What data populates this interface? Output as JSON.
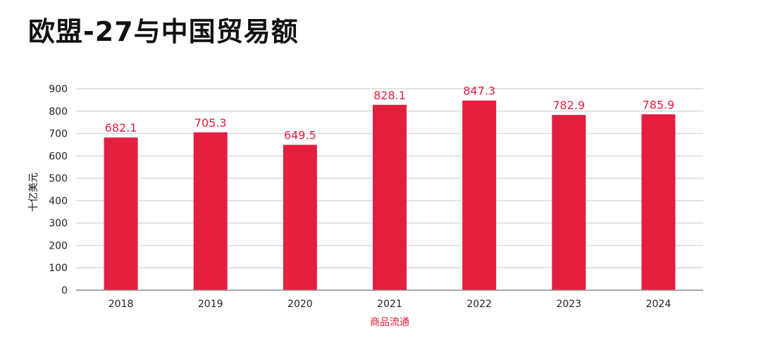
{
  "title": "欧盟-27与中国贸易额",
  "chart_data": {
    "type": "bar",
    "categories": [
      "2018",
      "2019",
      "2020",
      "2021",
      "2022",
      "2023",
      "2024"
    ],
    "series": [
      {
        "name": "商品流通",
        "values": [
          682.1,
          705.3,
          649.5,
          828.1,
          847.3,
          782.9,
          785.9
        ]
      }
    ],
    "data_labels": [
      "682.1",
      "705.3",
      "649.5",
      "828.1",
      "847.3",
      "782.9",
      "785.9"
    ],
    "xlabel": "商品流通",
    "ylabel": "十亿美元",
    "ylim": [
      0,
      900
    ],
    "yticks": [
      "0",
      "100",
      "200",
      "300",
      "400",
      "500",
      "600",
      "700",
      "800",
      "900"
    ],
    "grid": true,
    "colors": {
      "bar": "#e41e3f",
      "data_label": "#e41e3f",
      "xlabel": "#e41e3f",
      "ylabel": "#111111",
      "grid": "#d9d9d9",
      "axis": "#8c8c8c"
    }
  }
}
